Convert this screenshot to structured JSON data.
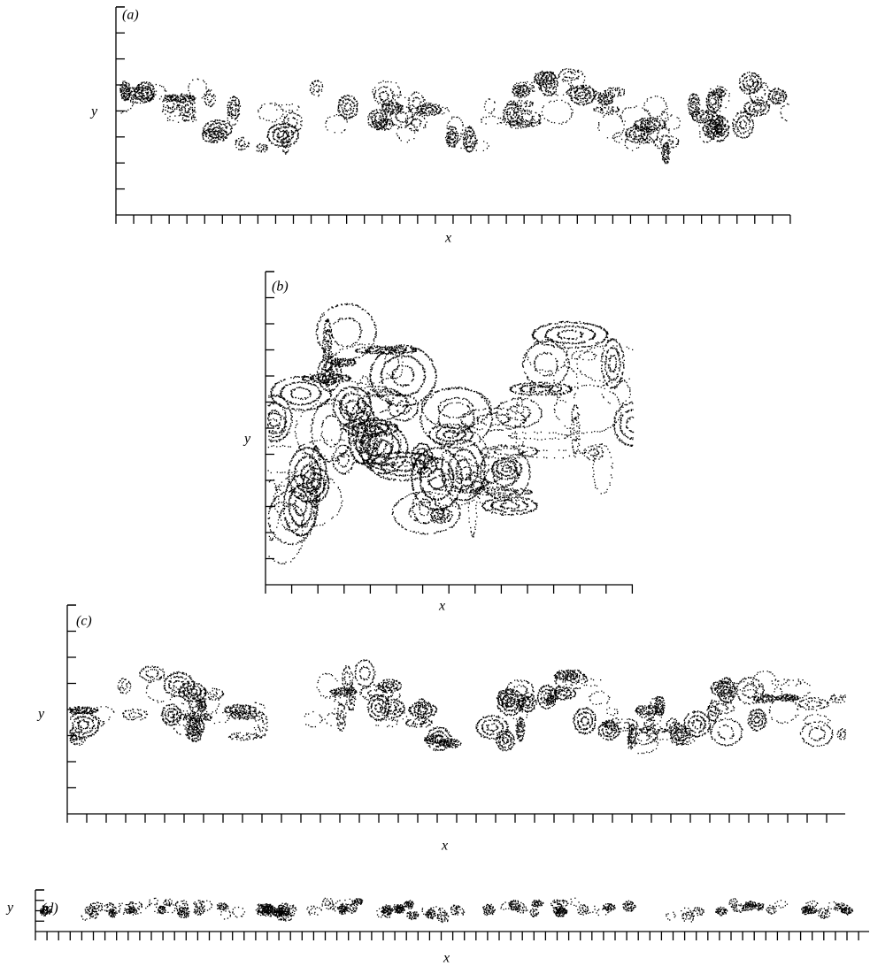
{
  "panels": [
    {
      "label": "(a)",
      "xlabel": "x",
      "ylabel": "y"
    },
    {
      "label": "(b)",
      "xlabel": "x",
      "ylabel": "y"
    },
    {
      "label": "(c)",
      "xlabel": "x",
      "ylabel": "y"
    },
    {
      "label": "(d)",
      "xlabel": "x",
      "ylabel": "y"
    }
  ]
}
